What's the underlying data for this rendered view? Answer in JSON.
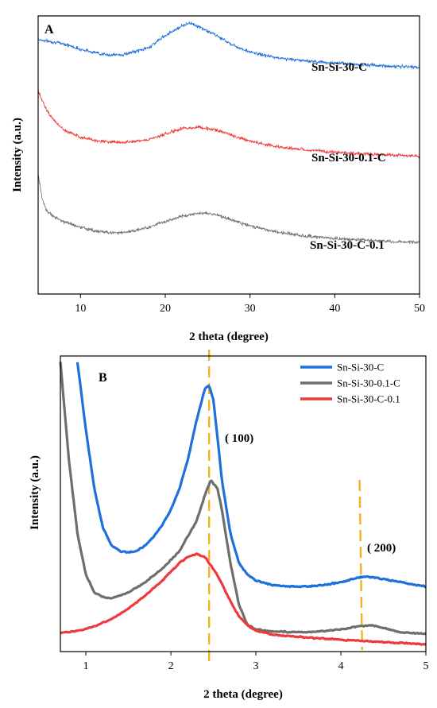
{
  "chart_data": [
    {
      "panel": "A",
      "type": "line",
      "xlabel": "2 theta (degree)",
      "ylabel": "Intensity (a.u.)",
      "xlim": [
        5,
        50
      ],
      "xticks": [
        10,
        20,
        30,
        40,
        50
      ],
      "yticks": [],
      "legend": "none",
      "grid": false,
      "series": [
        {
          "name": "Sn-Si-30-C",
          "color": "#1f6fdc",
          "x": [
            5,
            8,
            10,
            13,
            15,
            18,
            20,
            22,
            23,
            24,
            26,
            28,
            30,
            33,
            36,
            40,
            43,
            46,
            50
          ],
          "y": [
            0.915,
            0.9,
            0.88,
            0.86,
            0.86,
            0.885,
            0.93,
            0.965,
            0.975,
            0.96,
            0.93,
            0.895,
            0.87,
            0.85,
            0.84,
            0.83,
            0.825,
            0.82,
            0.815
          ]
        },
        {
          "name": "Sn-Si-30-0.1-C",
          "color": "#ee3a3a",
          "x": [
            5,
            6,
            7,
            8,
            10,
            12,
            15,
            18,
            20,
            22,
            24,
            26,
            28,
            30,
            33,
            36,
            40,
            43,
            46,
            50
          ],
          "y": [
            0.73,
            0.66,
            0.62,
            0.59,
            0.565,
            0.55,
            0.545,
            0.555,
            0.575,
            0.595,
            0.6,
            0.59,
            0.57,
            0.55,
            0.53,
            0.52,
            0.51,
            0.505,
            0.5,
            0.495
          ]
        },
        {
          "name": "Sn-Si-30-C-0.1",
          "color": "#707070",
          "x": [
            5,
            5.5,
            6,
            7,
            8,
            10,
            12,
            14,
            16,
            18,
            20,
            22,
            24,
            25,
            26,
            28,
            30,
            33,
            36,
            40,
            43,
            46,
            50
          ],
          "y": [
            0.43,
            0.34,
            0.3,
            0.275,
            0.26,
            0.24,
            0.225,
            0.22,
            0.225,
            0.24,
            0.26,
            0.28,
            0.29,
            0.29,
            0.285,
            0.265,
            0.245,
            0.225,
            0.21,
            0.2,
            0.195,
            0.19,
            0.185
          ]
        }
      ],
      "curve_labels": [
        "Sn-Si-30-C",
        "Sn-Si-30-0.1-C",
        "Sn-Si-30-C-0.1"
      ]
    },
    {
      "panel": "B",
      "type": "line",
      "xlabel": "2 theta (degree)",
      "ylabel": "Intensity (a.u.)",
      "xlim": [
        0.7,
        5
      ],
      "xticks": [
        1,
        2,
        3,
        4,
        5
      ],
      "yticks": [],
      "legend": "top-right",
      "grid": false,
      "series": [
        {
          "name": "Sn-Si-30-C",
          "color": "#1f6fdc",
          "x": [
            0.9,
            1.0,
            1.1,
            1.2,
            1.3,
            1.4,
            1.5,
            1.6,
            1.7,
            1.8,
            1.9,
            2.0,
            2.1,
            2.2,
            2.3,
            2.4,
            2.45,
            2.5,
            2.55,
            2.6,
            2.7,
            2.8,
            2.9,
            3.0,
            3.2,
            3.4,
            3.6,
            3.8,
            4.0,
            4.2,
            4.3,
            4.5,
            4.7,
            5.0
          ],
          "y": [
            0.98,
            0.75,
            0.55,
            0.42,
            0.36,
            0.34,
            0.335,
            0.34,
            0.36,
            0.39,
            0.43,
            0.48,
            0.55,
            0.65,
            0.78,
            0.89,
            0.9,
            0.85,
            0.72,
            0.58,
            0.4,
            0.3,
            0.26,
            0.24,
            0.225,
            0.22,
            0.22,
            0.225,
            0.235,
            0.25,
            0.255,
            0.245,
            0.235,
            0.22
          ]
        },
        {
          "name": "Sn-Si-30-0.1-C",
          "color": "#6e6e6e",
          "x": [
            0.7,
            0.8,
            0.9,
            1.0,
            1.1,
            1.2,
            1.3,
            1.5,
            1.7,
            1.9,
            2.1,
            2.3,
            2.4,
            2.47,
            2.55,
            2.6,
            2.7,
            2.8,
            2.9,
            3.0,
            3.2,
            3.4,
            3.6,
            3.8,
            4.0,
            4.2,
            4.35,
            4.5,
            4.7,
            5.0
          ],
          "y": [
            0.98,
            0.65,
            0.4,
            0.26,
            0.2,
            0.185,
            0.18,
            0.2,
            0.235,
            0.28,
            0.34,
            0.44,
            0.53,
            0.58,
            0.55,
            0.48,
            0.3,
            0.16,
            0.09,
            0.075,
            0.068,
            0.066,
            0.066,
            0.07,
            0.075,
            0.085,
            0.09,
            0.08,
            0.065,
            0.06
          ]
        },
        {
          "name": "Sn-Si-30-C-0.1",
          "color": "#ee3a3a",
          "x": [
            0.7,
            0.9,
            1.1,
            1.3,
            1.5,
            1.7,
            1.9,
            2.0,
            2.1,
            2.2,
            2.3,
            2.4,
            2.5,
            2.6,
            2.7,
            2.8,
            2.9,
            3.0,
            3.2,
            3.4,
            3.6,
            3.8,
            4.0,
            4.2,
            4.4,
            4.6,
            4.8,
            5.0
          ],
          "y": [
            0.063,
            0.07,
            0.085,
            0.11,
            0.145,
            0.19,
            0.24,
            0.27,
            0.3,
            0.32,
            0.33,
            0.32,
            0.28,
            0.23,
            0.17,
            0.12,
            0.09,
            0.07,
            0.058,
            0.052,
            0.048,
            0.044,
            0.04,
            0.037,
            0.034,
            0.031,
            0.028,
            0.025
          ]
        }
      ],
      "annotations": [
        {
          "text": "( 100)",
          "x": 2.45
        },
        {
          "text": "( 200)",
          "x": 4.25
        }
      ],
      "reference_lines": [
        {
          "color": "#f5b022",
          "style": "dashed",
          "x": [
            2.45,
            2.45
          ]
        },
        {
          "color": "#f5b022",
          "style": "dashed",
          "x": [
            4.22,
            4.25
          ]
        }
      ]
    }
  ]
}
